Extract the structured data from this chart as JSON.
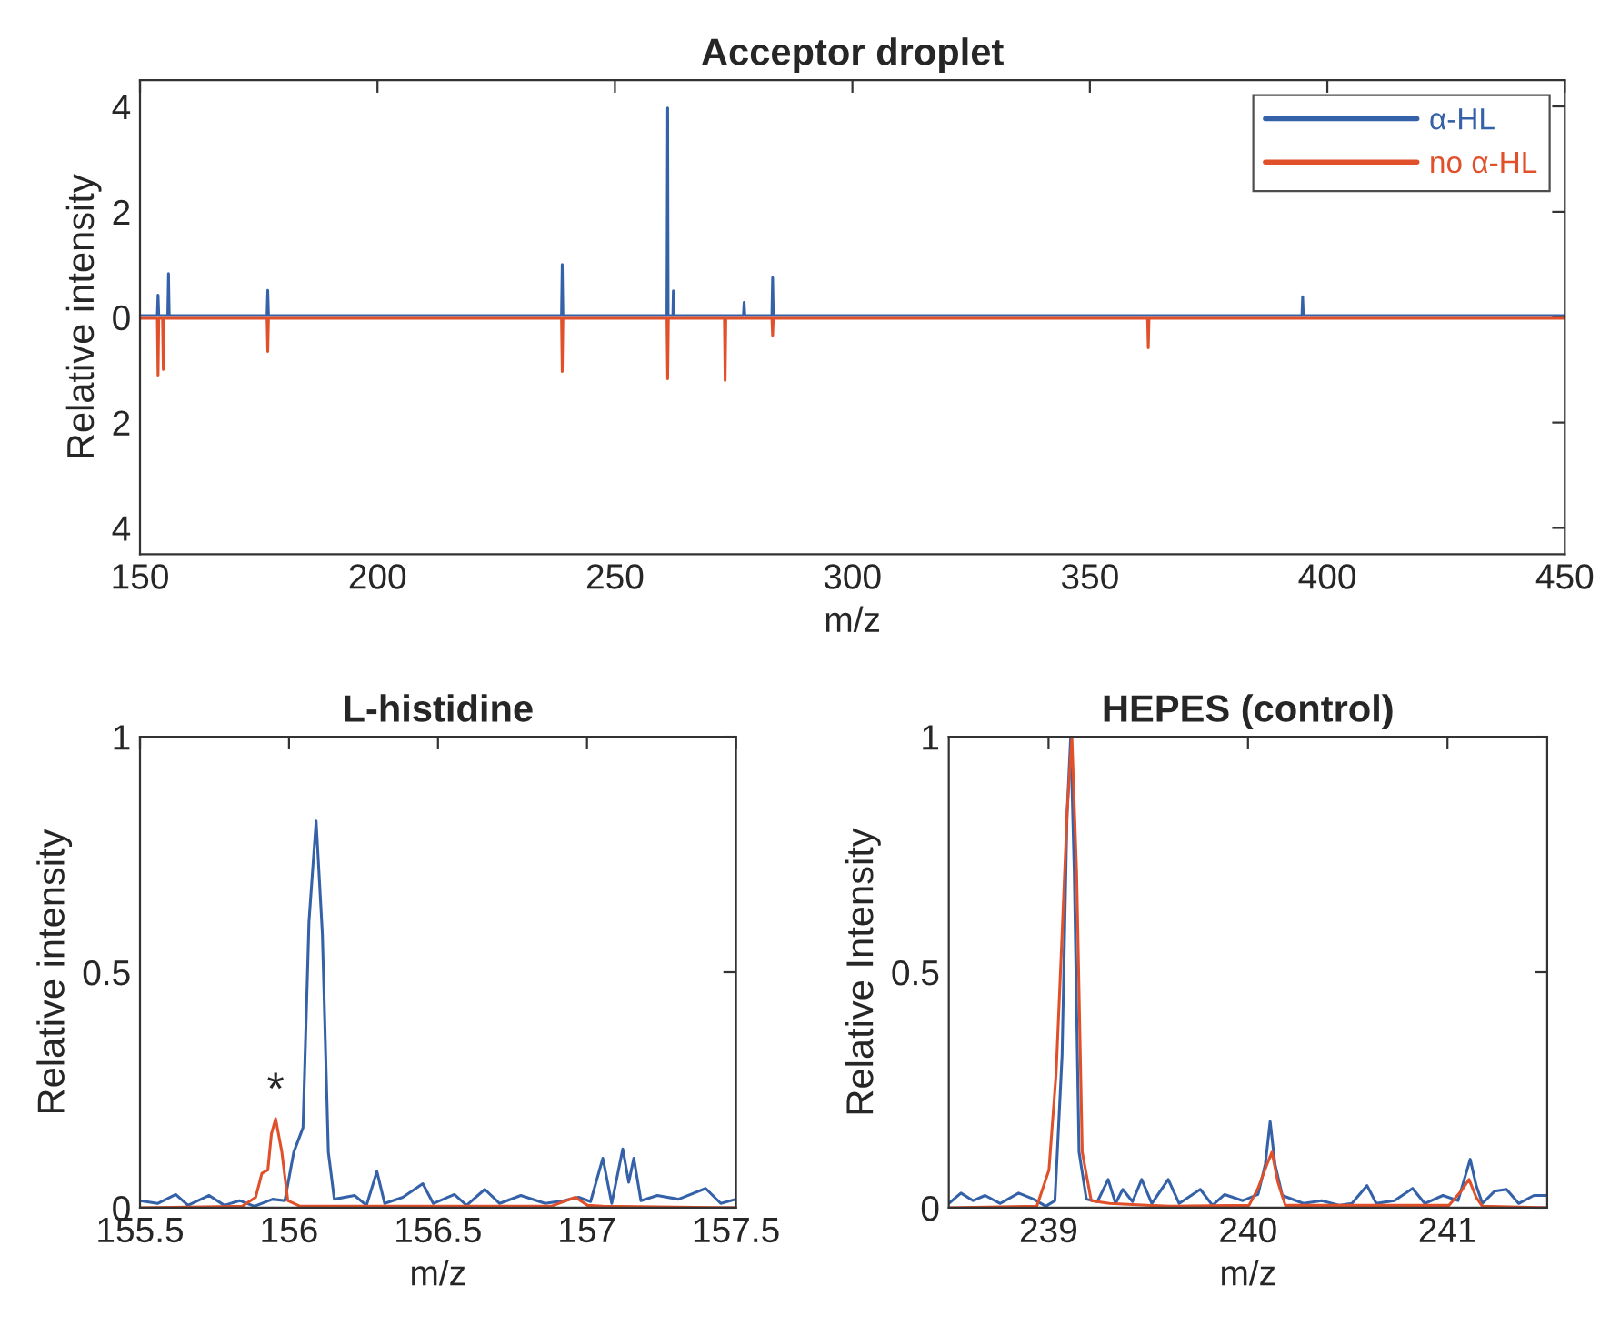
{
  "chart_data": [
    {
      "type": "line",
      "title": "Acceptor droplet",
      "xlabel": "m/z",
      "ylabel": "Relative intensity",
      "xlim": [
        150,
        450
      ],
      "xticks": [
        150,
        200,
        250,
        300,
        350,
        400,
        450
      ],
      "ylim": [
        -4.5,
        4.5
      ],
      "yticks": [
        {
          "value": -4,
          "label": "4"
        },
        {
          "value": -2,
          "label": "2"
        },
        0,
        2,
        4
      ],
      "grid": false,
      "legend": "top right",
      "series": [
        {
          "name": "α-HL",
          "color": "#3461a8",
          "x": [
            150,
            153.65,
            153.8,
            153.95,
            155.85,
            156.0,
            156.15,
            176.75,
            176.9,
            177.05,
            238.75,
            238.9,
            239.05,
            260.95,
            261.1,
            261.2,
            262.2,
            262.3,
            262.45,
            277.05,
            277.2,
            277.35,
            283.05,
            283.2,
            283.35,
            394.65,
            394.8,
            394.95,
            450
          ],
          "values": [
            0.03,
            0.03,
            0.42,
            0.03,
            0.03,
            0.83,
            0.03,
            0.03,
            0.51,
            0.03,
            0.03,
            1.0,
            0.03,
            0.03,
            3.97,
            0.03,
            0.03,
            0.5,
            0.03,
            0.03,
            0.28,
            0.03,
            0.03,
            0.75,
            0.03,
            0.03,
            0.39,
            0.03,
            0.03
          ]
        },
        {
          "name": "no α-HL",
          "color": "#e0502a",
          "x": [
            150,
            153.65,
            153.8,
            153.95,
            154.75,
            154.9,
            155.05,
            176.75,
            176.9,
            177.05,
            238.75,
            238.9,
            239.05,
            260.95,
            261.1,
            261.25,
            273.05,
            273.2,
            273.35,
            283.05,
            283.2,
            283.35,
            362.15,
            362.3,
            362.45,
            450
          ],
          "values": [
            -0.02,
            -0.02,
            -1.1,
            -0.02,
            -0.02,
            -0.99,
            -0.02,
            -0.02,
            -0.65,
            -0.02,
            -0.02,
            -1.03,
            -0.02,
            -0.02,
            -1.17,
            -0.02,
            -0.02,
            -1.2,
            -0.02,
            -0.02,
            -0.35,
            -0.02,
            -0.02,
            -0.58,
            -0.02,
            -0.02
          ]
        }
      ]
    },
    {
      "type": "line",
      "title": "L-histidine",
      "xlabel": "m/z",
      "ylabel": "Relative intensity",
      "xlim": [
        155.5,
        157.5
      ],
      "xticks": [
        155.5,
        156,
        156.5,
        157,
        157.5
      ],
      "ylim": [
        0,
        1
      ],
      "yticks": [
        0,
        0.5,
        1
      ],
      "grid": false,
      "annotations": [
        {
          "text": "*",
          "x": 155.955,
          "y": 0.2
        }
      ],
      "series": [
        {
          "color": "#3461a8",
          "x": [
            155.5,
            155.559,
            155.62,
            155.661,
            155.732,
            155.783,
            155.834,
            155.884,
            155.945,
            155.986,
            156.016,
            156.047,
            156.067,
            156.091,
            156.112,
            156.132,
            156.152,
            156.22,
            156.26,
            156.295,
            156.321,
            156.382,
            156.449,
            156.484,
            156.555,
            156.596,
            156.657,
            156.707,
            156.778,
            156.86,
            156.921,
            156.972,
            157.012,
            157.053,
            157.083,
            157.12,
            157.14,
            157.157,
            157.181,
            157.236,
            157.307,
            157.398,
            157.449,
            157.5
          ],
          "values": [
            0.015,
            0.009,
            0.028,
            0.005,
            0.026,
            0.005,
            0.015,
            0.003,
            0.018,
            0.015,
            0.118,
            0.17,
            0.607,
            0.821,
            0.581,
            0.118,
            0.018,
            0.026,
            0.005,
            0.077,
            0.009,
            0.022,
            0.051,
            0.009,
            0.028,
            0.005,
            0.039,
            0.009,
            0.026,
            0.009,
            0.015,
            0.022,
            0.013,
            0.105,
            0.009,
            0.125,
            0.054,
            0.105,
            0.015,
            0.026,
            0.018,
            0.041,
            0.009,
            0.018
          ]
        },
        {
          "color": "#e0502a",
          "x": [
            155.5,
            155.843,
            155.888,
            155.909,
            155.929,
            155.941,
            155.955,
            155.976,
            155.996,
            156.037,
            156.88,
            156.921,
            156.961,
            157.002,
            157.053,
            157.5
          ],
          "values": [
            0,
            0.003,
            0.022,
            0.073,
            0.08,
            0.157,
            0.189,
            0.118,
            0.015,
            0.003,
            0.003,
            0.013,
            0.022,
            0.005,
            0.003,
            0
          ]
        }
      ]
    },
    {
      "type": "line",
      "title": "HEPES (control)",
      "xlabel": "m/z",
      "ylabel": "Relative Intensity",
      "xlim": [
        238.5,
        241.5
      ],
      "xticks": [
        239,
        240,
        241
      ],
      "ylim": [
        0,
        1
      ],
      "yticks": [
        0,
        0.5,
        1
      ],
      "grid": false,
      "series": [
        {
          "color": "#3461a8",
          "x": [
            238.5,
            238.561,
            238.622,
            238.682,
            238.758,
            238.85,
            238.926,
            238.986,
            239.032,
            239.068,
            239.093,
            239.111,
            239.129,
            239.153,
            239.19,
            239.245,
            239.299,
            239.336,
            239.372,
            239.421,
            239.467,
            239.518,
            239.6,
            239.655,
            239.761,
            239.822,
            239.883,
            239.974,
            240.05,
            240.087,
            240.111,
            240.135,
            240.172,
            240.278,
            240.369,
            240.46,
            240.521,
            240.597,
            240.643,
            240.734,
            240.825,
            240.886,
            240.977,
            241.053,
            241.114,
            241.144,
            241.175,
            241.236,
            241.296,
            241.357,
            241.433,
            241.5
          ],
          "values": [
            0.009,
            0.031,
            0.015,
            0.026,
            0.009,
            0.031,
            0.018,
            0.003,
            0.015,
            0.324,
            0.838,
            1.0,
            0.71,
            0.118,
            0.018,
            0.013,
            0.06,
            0.009,
            0.039,
            0.013,
            0.06,
            0.009,
            0.06,
            0.009,
            0.039,
            0.005,
            0.028,
            0.015,
            0.028,
            0.093,
            0.183,
            0.093,
            0.026,
            0.009,
            0.015,
            0.005,
            0.009,
            0.047,
            0.009,
            0.015,
            0.041,
            0.009,
            0.026,
            0.015,
            0.103,
            0.047,
            0.009,
            0.035,
            0.039,
            0.009,
            0.026,
            0.026
          ]
        },
        {
          "color": "#e0502a",
          "x": [
            238.5,
            238.941,
            239.002,
            239.038,
            239.068,
            239.093,
            239.117,
            239.141,
            239.169,
            239.214,
            239.305,
            239.609,
            240.005,
            240.05,
            240.096,
            240.12,
            240.15,
            240.187,
            241.008,
            241.068,
            241.108,
            241.144,
            241.175,
            241.5
          ],
          "values": [
            0,
            0.003,
            0.08,
            0.285,
            0.581,
            0.838,
            1.0,
            0.71,
            0.118,
            0.015,
            0.009,
            0.003,
            0.005,
            0.041,
            0.093,
            0.118,
            0.054,
            0.005,
            0.005,
            0.035,
            0.06,
            0.022,
            0.003,
            0
          ]
        }
      ]
    }
  ]
}
